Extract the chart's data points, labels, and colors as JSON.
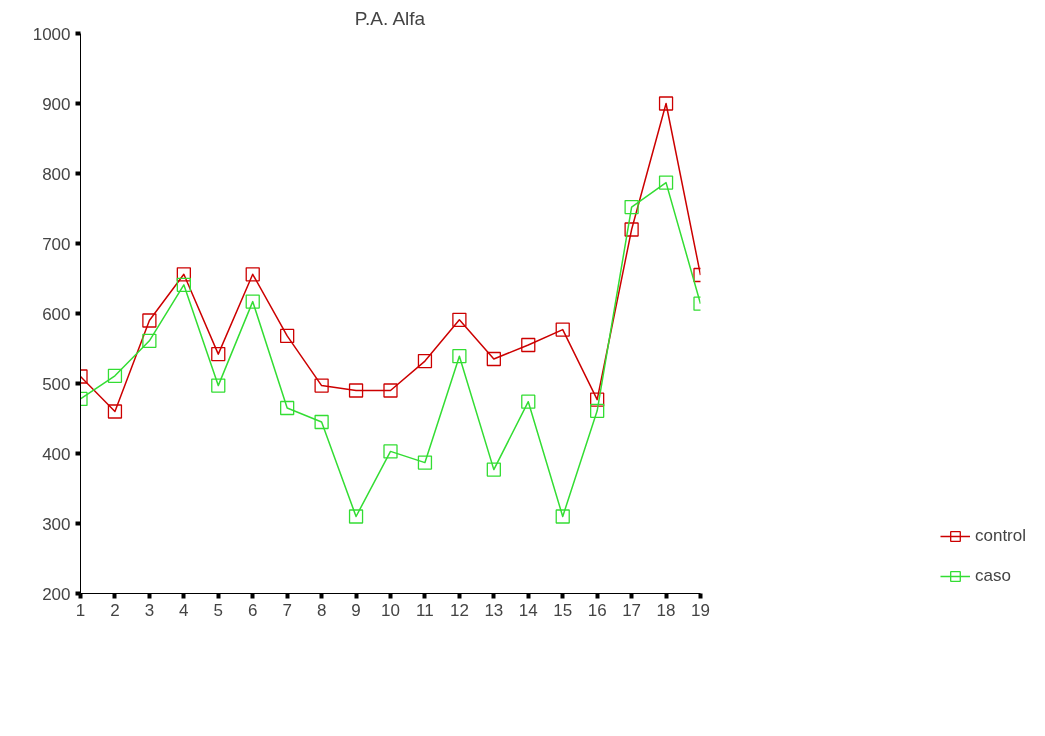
{
  "chart_data": {
    "type": "line",
    "title": "P.A. Alfa",
    "x": [
      1,
      2,
      3,
      4,
      5,
      6,
      7,
      8,
      9,
      10,
      11,
      12,
      13,
      14,
      15,
      16,
      17,
      18,
      19
    ],
    "series": [
      {
        "name": "control",
        "color": "#cc0000",
        "values": [
          510,
          460,
          590,
          656,
          542,
          656,
          568,
          497,
          490,
          490,
          532,
          591,
          535,
          555,
          577,
          477,
          720,
          900,
          655
        ]
      },
      {
        "name": "caso",
        "color": "#33dd33",
        "values": [
          478,
          511,
          561,
          641,
          497,
          617,
          465,
          445,
          310,
          403,
          387,
          539,
          377,
          474,
          310,
          461,
          752,
          787,
          614
        ]
      }
    ],
    "xlim": [
      1,
      19
    ],
    "xticks": [
      1,
      2,
      3,
      4,
      5,
      6,
      7,
      8,
      9,
      10,
      11,
      12,
      13,
      14,
      15,
      16,
      17,
      18,
      19
    ],
    "ylim": [
      200,
      1000
    ],
    "yticks": [
      200,
      300,
      400,
      500,
      600,
      700,
      800,
      900,
      1000
    ],
    "grid": false,
    "legend": "right",
    "marker": "square",
    "line_style": "solid"
  }
}
